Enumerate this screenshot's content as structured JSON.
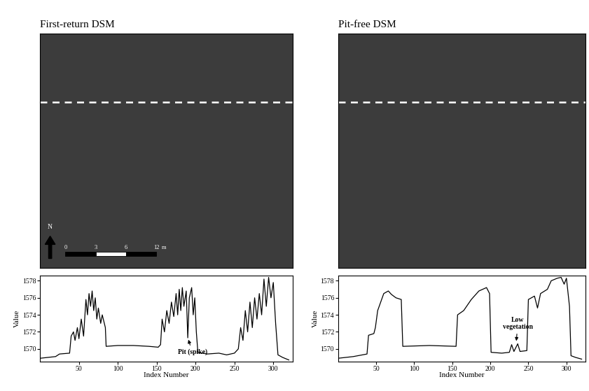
{
  "images": [
    {
      "title": "First-return DSM",
      "scale_bar": {
        "north": "N",
        "labels": [
          "0",
          "3",
          "6",
          "12"
        ],
        "unit": "m"
      }
    },
    {
      "title": "Pit-free DSM"
    }
  ],
  "chart_data": [
    {
      "type": "line",
      "xlabel": "Index Number",
      "ylabel": "Value",
      "color": "#000000",
      "x": [
        0,
        10,
        20,
        25,
        38,
        40,
        43,
        45,
        48,
        50,
        53,
        56,
        59,
        61,
        63,
        65,
        67,
        69,
        71,
        73,
        75,
        78,
        80,
        84,
        85,
        100,
        120,
        140,
        152,
        155,
        157,
        160,
        163,
        166,
        169,
        172,
        175,
        177,
        179,
        181,
        183,
        185,
        188,
        190,
        192,
        195,
        197,
        199,
        201,
        203,
        215,
        230,
        240,
        250,
        255,
        258,
        261,
        264,
        267,
        270,
        273,
        276,
        279,
        282,
        285,
        288,
        291,
        294,
        297,
        300,
        303,
        306,
        312,
        320
      ],
      "values": [
        1568.9,
        1569.0,
        1569.1,
        1569.4,
        1569.5,
        1571.5,
        1572.0,
        1571.0,
        1572.5,
        1571.2,
        1573.5,
        1571.5,
        1575.8,
        1574.0,
        1576.5,
        1575.0,
        1576.8,
        1574.5,
        1576.0,
        1573.5,
        1574.8,
        1573.0,
        1574.0,
        1572.5,
        1570.3,
        1570.4,
        1570.4,
        1570.3,
        1570.2,
        1570.5,
        1573.5,
        1572.0,
        1574.5,
        1573.0,
        1575.5,
        1573.8,
        1576.5,
        1574.0,
        1577.0,
        1574.5,
        1577.2,
        1575.0,
        1576.8,
        1571.3,
        1576.0,
        1577.2,
        1574.0,
        1576.0,
        1572.0,
        1569.6,
        1569.4,
        1569.5,
        1569.3,
        1569.5,
        1570.0,
        1572.5,
        1571.0,
        1574.5,
        1572.0,
        1575.5,
        1572.5,
        1576.0,
        1573.5,
        1576.5,
        1574.0,
        1578.2,
        1575.0,
        1578.4,
        1576.0,
        1577.8,
        1573.0,
        1569.3,
        1569.0,
        1568.7
      ],
      "xlim": [
        0,
        325
      ],
      "xticks": [
        50,
        100,
        150,
        200,
        250,
        300
      ],
      "ylim": [
        1568.5,
        1578.6
      ],
      "yticks": [
        1570,
        1572,
        1574,
        1576,
        1578
      ],
      "annotations": [
        {
          "text": "Pit (spike)",
          "x": 190,
          "y": 1571.3,
          "text_x": 196,
          "text_y": 1569.6
        }
      ]
    },
    {
      "type": "line",
      "xlabel": "Index Number",
      "ylabel": "Value",
      "color": "#000000",
      "x": [
        0,
        20,
        38,
        40,
        47,
        49,
        52,
        56,
        60,
        66,
        70,
        76,
        83,
        85,
        120,
        155,
        157,
        165,
        175,
        185,
        195,
        199,
        201,
        215,
        225,
        228,
        231,
        236,
        239,
        248,
        250,
        258,
        262,
        266,
        275,
        280,
        288,
        293,
        297,
        300,
        304,
        306,
        312,
        320
      ],
      "values": [
        1568.9,
        1569.1,
        1569.4,
        1571.6,
        1571.8,
        1572.5,
        1574.5,
        1575.5,
        1576.5,
        1576.8,
        1576.4,
        1576.0,
        1575.8,
        1570.3,
        1570.4,
        1570.3,
        1574.0,
        1574.5,
        1575.8,
        1576.8,
        1577.2,
        1576.5,
        1569.6,
        1569.5,
        1569.6,
        1570.5,
        1569.7,
        1570.6,
        1569.7,
        1569.8,
        1575.8,
        1576.2,
        1574.8,
        1576.5,
        1577.0,
        1578.0,
        1578.3,
        1578.4,
        1577.6,
        1578.3,
        1575.0,
        1569.2,
        1569.0,
        1568.8
      ],
      "xlim": [
        0,
        325
      ],
      "xticks": [
        50,
        100,
        150,
        200,
        250,
        300
      ],
      "ylim": [
        1568.5,
        1578.6
      ],
      "yticks": [
        1570,
        1572,
        1574,
        1576,
        1578
      ],
      "annotations": [
        {
          "text": "Low\nvegetation",
          "x": 234,
          "y": 1570.7,
          "text_x": 236,
          "text_y": 1573.0
        }
      ]
    }
  ]
}
